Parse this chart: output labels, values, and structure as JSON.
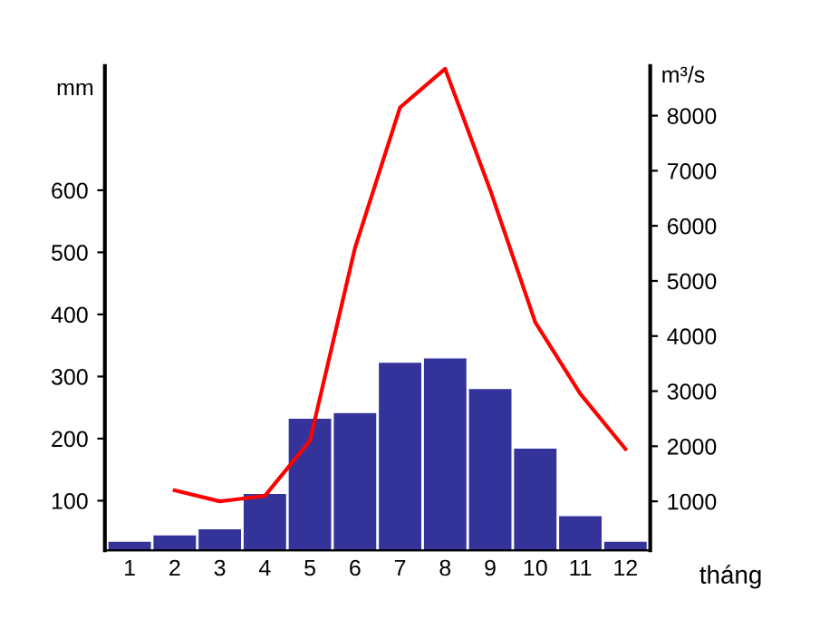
{
  "chart_data": {
    "type": "bar",
    "categories": [
      "1",
      "2",
      "3",
      "4",
      "5",
      "6",
      "7",
      "8",
      "9",
      "10",
      "11",
      "12"
    ],
    "xlabel": "tháng",
    "ylabel": "mm",
    "y2label": "m³/s",
    "ylim": [
      20,
      800
    ],
    "yticks": [
      100,
      200,
      300,
      400,
      500,
      600
    ],
    "y2lim": [
      110,
      8900
    ],
    "y2ticks": [
      1000,
      2000,
      3000,
      4000,
      5000,
      6000,
      7000,
      8000
    ],
    "grid": false,
    "legend": false,
    "series": [
      {
        "color": "#33339a",
        "values": [
          35,
          45,
          55,
          112,
          233,
          242,
          323,
          330,
          281,
          185,
          76,
          35
        ]
      },
      {
        "type": "line",
        "axis": "y2",
        "color": "#ff0000",
        "marker": "none",
        "values": [
          null,
          1200,
          1000,
          1100,
          2100,
          5600,
          8150,
          8850,
          6650,
          4250,
          2950,
          1950
        ]
      }
    ]
  }
}
